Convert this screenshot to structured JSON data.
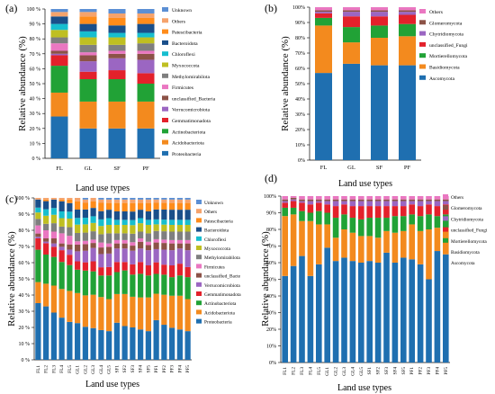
{
  "chart_data": [
    {
      "panel_label": "(a)",
      "type": "bar",
      "stacked": true,
      "percent_axis": true,
      "ylabel": "Relative abundance (%)",
      "xlabel": "Land use types",
      "ylim": [
        0,
        100
      ],
      "y_ticks": [
        "0 %",
        "10 %",
        "20 %",
        "30 %",
        "40 %",
        "50 %",
        "60 %",
        "70 %",
        "80 %",
        "90 %",
        "100 %"
      ],
      "categories": [
        "FL",
        "GL",
        "SF",
        "PF"
      ],
      "legend_position": "right",
      "series": [
        {
          "name": "Proteobacteria",
          "color": "#1f6fb0",
          "values": [
            28,
            20,
            20,
            20
          ]
        },
        {
          "name": "Acidobacteriota",
          "color": "#f38a1e",
          "values": [
            16,
            18,
            18,
            18
          ]
        },
        {
          "name": "Actinobacteriota",
          "color": "#21a236",
          "values": [
            18,
            15,
            15,
            12
          ]
        },
        {
          "name": "Gemmatimonadota",
          "color": "#e3212b",
          "values": [
            7,
            5,
            6,
            7
          ]
        },
        {
          "name": "Verrucomicrobiota",
          "color": "#9b66c2",
          "values": [
            1,
            7,
            8,
            9
          ]
        },
        {
          "name": "unclassified_Bacteria",
          "color": "#8c5247",
          "values": [
            2,
            4,
            3,
            4
          ]
        },
        {
          "name": "Firmicutes",
          "color": "#ea77c1",
          "values": [
            5,
            2,
            2,
            2
          ]
        },
        {
          "name": "Methylomirabilota",
          "color": "#7f7f7f",
          "values": [
            4,
            5,
            4,
            5
          ]
        },
        {
          "name": "Myxococcota",
          "color": "#bfbf22",
          "values": [
            5,
            5,
            5,
            4
          ]
        },
        {
          "name": "Chloroflexi",
          "color": "#17becf",
          "values": [
            4,
            4,
            3,
            3
          ]
        },
        {
          "name": "Bacteroidota",
          "color": "#1a4f8a",
          "values": [
            5,
            5,
            5,
            6
          ]
        },
        {
          "name": "Patescibacteria",
          "color": "#ff8c1a",
          "values": [
            0,
            5,
            5,
            4
          ]
        },
        {
          "name": "Others",
          "color": "#f5a36c",
          "values": [
            3,
            3,
            3,
            3
          ]
        },
        {
          "name": "Unknown",
          "color": "#5b8fd4",
          "values": [
            2,
            2,
            3,
            3
          ]
        }
      ]
    },
    {
      "panel_label": "(b)",
      "type": "bar",
      "stacked": true,
      "percent_axis": true,
      "ylabel": "Relative abundance (%)",
      "xlabel": "Land use types",
      "ylim": [
        0,
        100
      ],
      "y_ticks": [
        "0%",
        "10%",
        "20%",
        "30%",
        "40%",
        "50%",
        "60%",
        "70%",
        "80%",
        "90%",
        "100%"
      ],
      "categories": [
        "FL",
        "GL",
        "SF",
        "PF"
      ],
      "legend_position": "right",
      "series": [
        {
          "name": "Ascomycota",
          "color": "#1f6fb0",
          "values": [
            57,
            63,
            62,
            62
          ]
        },
        {
          "name": "Basidiomycota",
          "color": "#f38a1e",
          "values": [
            31,
            14,
            18,
            19
          ]
        },
        {
          "name": "Mortierellomycota",
          "color": "#21a236",
          "values": [
            5,
            10,
            8,
            8
          ]
        },
        {
          "name": "unclassified_Fungi",
          "color": "#e3212b",
          "values": [
            3,
            7,
            6,
            6
          ]
        },
        {
          "name": "Chytridiomycota",
          "color": "#9b66c2",
          "values": [
            1,
            3,
            3,
            2
          ]
        },
        {
          "name": "Glomeromycota",
          "color": "#8c5247",
          "values": [
            1,
            1,
            1,
            1
          ]
        },
        {
          "name": "Others",
          "color": "#ea77c1",
          "values": [
            2,
            2,
            2,
            2
          ]
        }
      ]
    },
    {
      "panel_label": "(c)",
      "type": "bar",
      "stacked": true,
      "percent_axis": true,
      "ylabel": "Relative abundance (%)",
      "xlabel": "Land use types",
      "ylim": [
        0,
        100
      ],
      "y_ticks": [
        "0 %",
        "10 %",
        "20 %",
        "30 %",
        "40 %",
        "50 %",
        "60 %",
        "70 %",
        "80 %",
        "90 %",
        "100 %"
      ],
      "categories": [
        "FL1",
        "FL2",
        "FL3",
        "FL4",
        "FL5",
        "GL1",
        "GL2",
        "GL3",
        "GL4",
        "GL5",
        "SF1",
        "SF2",
        "SF3",
        "SF4",
        "SF5",
        "PF1",
        "PF2",
        "PF3",
        "PF4",
        "PF5"
      ],
      "legend_position": "right",
      "series": [
        {
          "name": "Proteobacteria",
          "color": "#1f6fb0",
          "values": [
            35,
            33,
            28,
            25,
            22,
            22,
            20,
            19,
            18,
            17,
            22,
            20,
            19,
            18,
            17,
            24,
            21,
            19,
            18,
            17
          ]
        },
        {
          "name": "Acidobacteriota",
          "color": "#f38a1e",
          "values": [
            13,
            14,
            16,
            17,
            18,
            18,
            19,
            20,
            20,
            19,
            17,
            19,
            18,
            19,
            20,
            16,
            18,
            19,
            20,
            19
          ]
        },
        {
          "name": "Actinobacteriota",
          "color": "#21a236",
          "values": [
            20,
            18,
            17,
            16,
            15,
            14,
            15,
            14,
            13,
            14,
            13,
            14,
            13,
            14,
            13,
            12,
            12,
            11,
            12,
            13
          ]
        },
        {
          "name": "Gemmatimonadota",
          "color": "#e3212b",
          "values": [
            7,
            7,
            6,
            7,
            6,
            5,
            5,
            6,
            5,
            5,
            6,
            5,
            6,
            7,
            6,
            7,
            6,
            7,
            7,
            6
          ]
        },
        {
          "name": "Verrucomicrobiota",
          "color": "#9b66c2",
          "values": [
            1,
            1,
            2,
            2,
            3,
            6,
            7,
            8,
            8,
            8,
            8,
            8,
            8,
            8,
            9,
            8,
            9,
            9,
            9,
            10
          ]
        },
        {
          "name": "unclassified_Bacte",
          "color": "#8c5247",
          "values": [
            2,
            2,
            3,
            2,
            3,
            4,
            4,
            3,
            4,
            4,
            3,
            3,
            3,
            4,
            3,
            4,
            4,
            4,
            3,
            4
          ]
        },
        {
          "name": "Firmicutes",
          "color": "#ea77c1",
          "values": [
            5,
            5,
            4,
            6,
            5,
            2,
            2,
            2,
            3,
            2,
            2,
            2,
            2,
            2,
            2,
            2,
            2,
            2,
            2,
            2
          ]
        },
        {
          "name": "Methylomirabilota",
          "color": "#7f7f7f",
          "values": [
            4,
            4,
            5,
            4,
            5,
            5,
            5,
            5,
            5,
            6,
            4,
            4,
            5,
            4,
            5,
            5,
            5,
            5,
            5,
            5
          ]
        },
        {
          "name": "Myxococcota",
          "color": "#bfbf22",
          "values": [
            4,
            5,
            5,
            5,
            5,
            5,
            5,
            5,
            5,
            5,
            5,
            5,
            5,
            5,
            5,
            4,
            4,
            4,
            4,
            4
          ]
        },
        {
          "name": "Chloroflexi",
          "color": "#17becf",
          "values": [
            3,
            4,
            4,
            4,
            4,
            4,
            4,
            4,
            4,
            4,
            3,
            3,
            3,
            3,
            3,
            3,
            3,
            3,
            3,
            3
          ]
        },
        {
          "name": "Bacteroidota",
          "color": "#1a4f8a",
          "values": [
            5,
            5,
            5,
            6,
            5,
            5,
            5,
            5,
            5,
            5,
            5,
            5,
            5,
            5,
            5,
            6,
            6,
            6,
            6,
            6
          ]
        },
        {
          "name": "Patescibacteria",
          "color": "#ff8c1a",
          "values": [
            0,
            1,
            0,
            1,
            2,
            5,
            4,
            4,
            5,
            4,
            5,
            5,
            5,
            4,
            5,
            4,
            4,
            4,
            4,
            4
          ]
        },
        {
          "name": "Others",
          "color": "#f5a36c",
          "values": [
            1,
            1,
            1,
            1,
            1,
            2,
            2,
            2,
            2,
            2,
            2,
            2,
            2,
            2,
            2,
            2,
            2,
            2,
            2,
            2
          ]
        },
        {
          "name": "Unknown",
          "color": "#5b8fd4",
          "values": [
            0,
            0,
            0,
            0,
            0,
            0,
            1,
            0,
            1,
            1,
            1,
            1,
            1,
            1,
            1,
            1,
            1,
            1,
            1,
            1
          ]
        }
      ]
    },
    {
      "panel_label": "(d)",
      "type": "bar",
      "stacked": true,
      "percent_axis": true,
      "ylabel": "Relative abundance (%)",
      "xlabel": "Land use types",
      "ylim": [
        0,
        100
      ],
      "y_ticks": [
        "0%",
        "10%",
        "20%",
        "30%",
        "40%",
        "50%",
        "60%",
        "70%",
        "80%",
        "90%",
        "100%"
      ],
      "categories": [
        "FL1",
        "FL2",
        "FL3",
        "FL4",
        "FL5",
        "GL1",
        "GL2",
        "GL3",
        "GL4",
        "GL5",
        "SF1",
        "SF2",
        "SF3",
        "SF4",
        "SF5",
        "PF1",
        "PF2",
        "PF3",
        "PF4",
        "PF5"
      ],
      "legend_position": "right",
      "series": [
        {
          "name": "Ascomycota",
          "color": "#1f6fb0",
          "values": [
            52,
            58,
            64,
            52,
            59,
            69,
            61,
            63,
            61,
            60,
            61,
            60,
            66,
            60,
            63,
            62,
            59,
            50,
            67,
            65
          ]
        },
        {
          "name": "Basidiomycota",
          "color": "#f38a1e",
          "values": [
            36,
            31,
            21,
            33,
            24,
            14,
            14,
            17,
            17,
            16,
            15,
            15,
            13,
            18,
            16,
            21,
            20,
            30,
            14,
            16
          ]
        },
        {
          "name": "Mortierellomycota",
          "color": "#21a236",
          "values": [
            5,
            4,
            6,
            5,
            8,
            7,
            12,
            9,
            9,
            10,
            11,
            12,
            8,
            10,
            9,
            6,
            9,
            9,
            7,
            8
          ]
        },
        {
          "name": "unclassified_Fungi",
          "color": "#e3212b",
          "values": [
            3,
            4,
            5,
            5,
            5,
            5,
            7,
            6,
            7,
            8,
            7,
            7,
            7,
            6,
            6,
            6,
            6,
            6,
            6,
            6
          ]
        },
        {
          "name": "Chytridiomycota",
          "color": "#9b66c2",
          "values": [
            1,
            1,
            1,
            2,
            1,
            2,
            3,
            2,
            3,
            3,
            3,
            3,
            3,
            3,
            3,
            2,
            3,
            2,
            3,
            2
          ]
        },
        {
          "name": "Glomeromycota",
          "color": "#8c5247",
          "values": [
            1,
            1,
            1,
            1,
            1,
            1,
            1,
            1,
            1,
            1,
            1,
            1,
            1,
            1,
            1,
            1,
            1,
            1,
            1,
            1
          ]
        },
        {
          "name": "Others",
          "color": "#ea77c1",
          "values": [
            2,
            1,
            2,
            2,
            2,
            2,
            2,
            2,
            2,
            2,
            2,
            2,
            2,
            2,
            2,
            2,
            2,
            2,
            2,
            2
          ]
        }
      ]
    }
  ]
}
